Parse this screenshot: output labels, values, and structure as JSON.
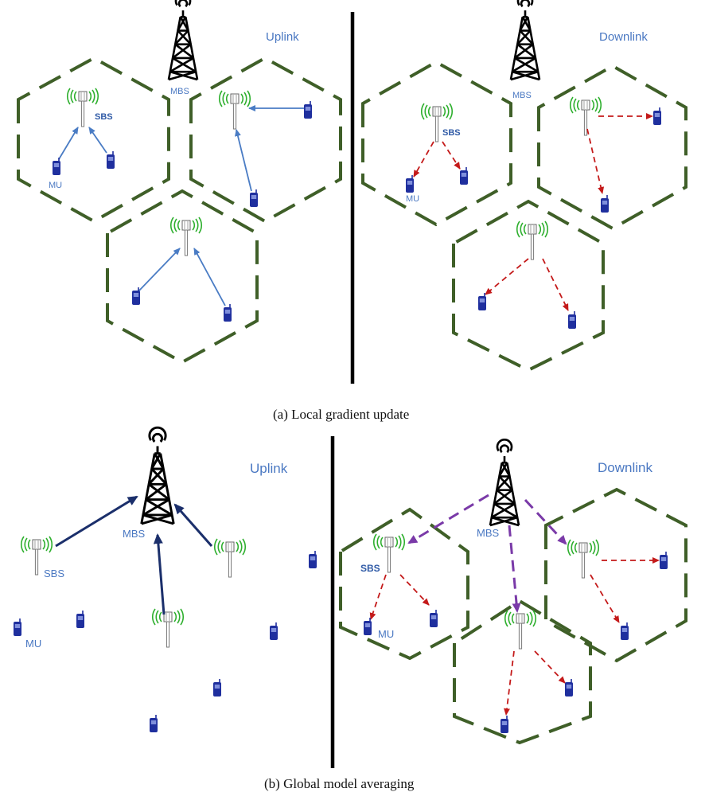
{
  "panel_a": {
    "uplink_title": "Uplink",
    "downlink_title": "Downlink",
    "caption": "(a) Local gradient update"
  },
  "panel_b": {
    "uplink_title": "Uplink",
    "downlink_title": "Downlink",
    "caption": "(b) Global model averaging"
  },
  "labels": {
    "mbs": "MBS",
    "sbs": "SBS",
    "mu": "MU"
  },
  "legend_colors": {
    "uplink_arrow": "#4a7cc4",
    "mbs_uplink_arrow": "#1b2f6b",
    "downlink_arrow": "#c41a1a",
    "mbs_downlink_arrow": "#7a3aa8",
    "cell_border": "#3f5f28",
    "signal_waves": "#2eaf2e",
    "mobile_unit": "#1f2f9e"
  },
  "icons": [
    "mbs-tower-icon",
    "sbs-antenna-icon",
    "mobile-phone-icon"
  ]
}
